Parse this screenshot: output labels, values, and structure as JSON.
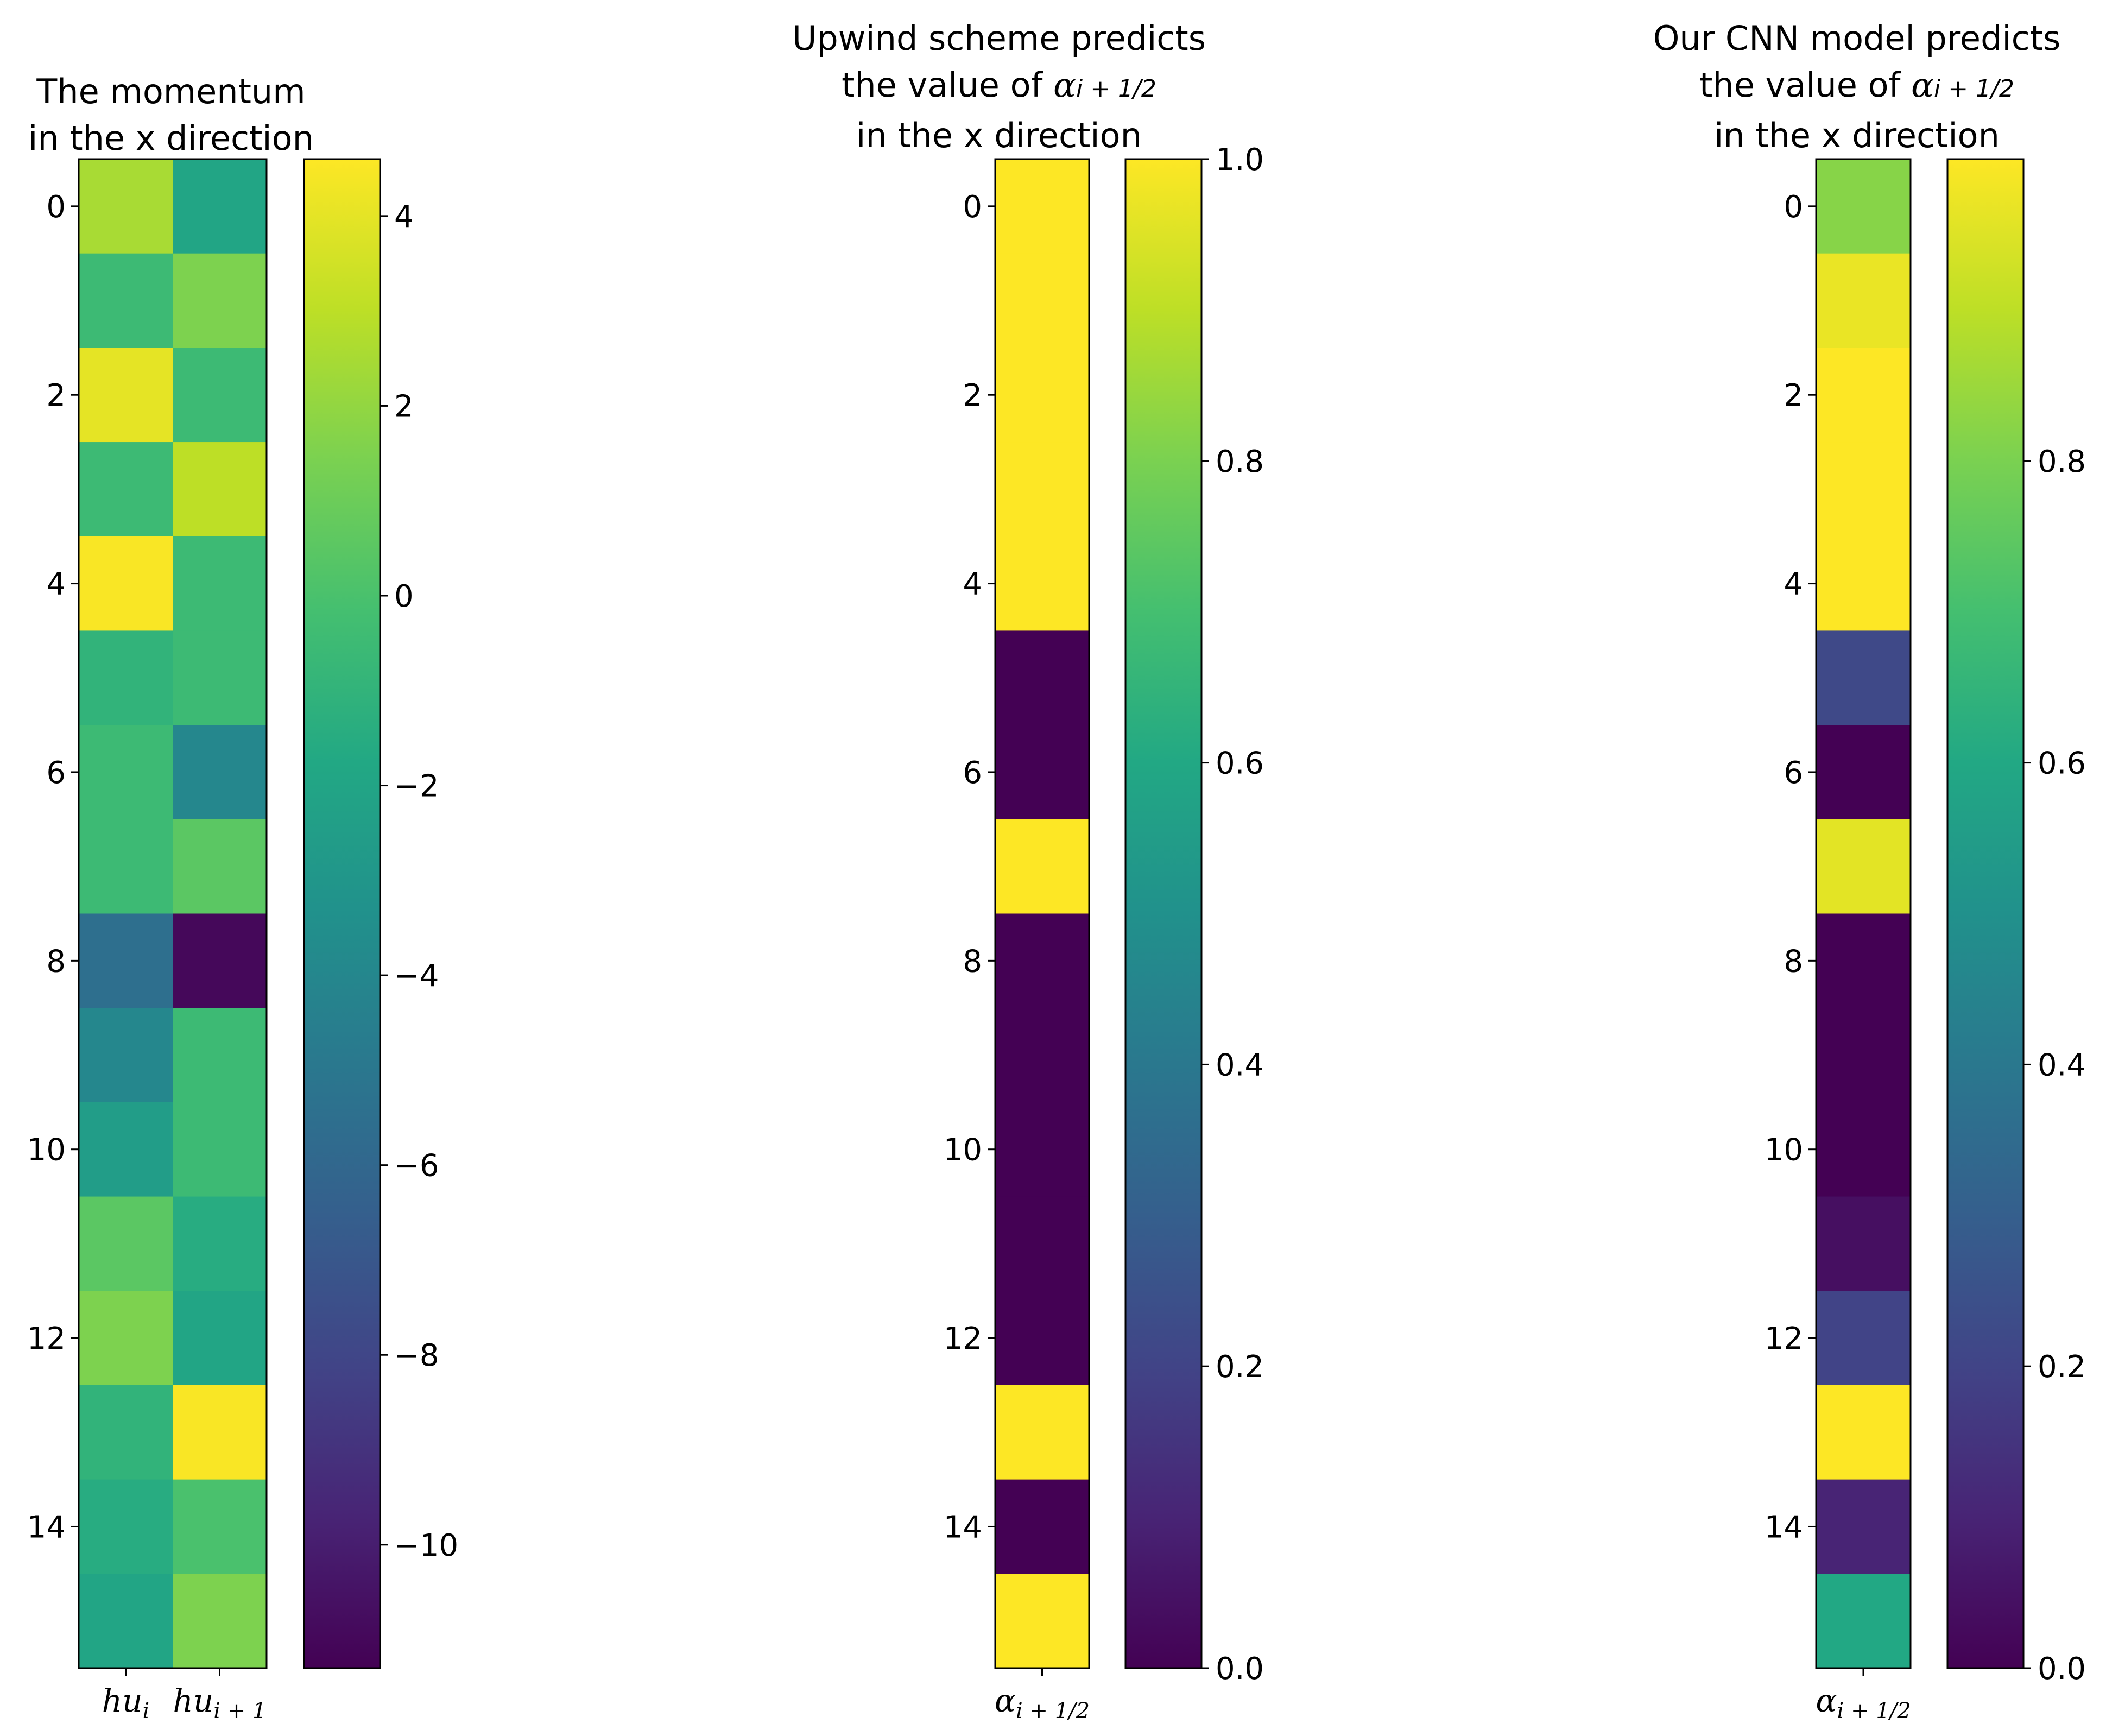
{
  "chart_data": [
    {
      "type": "heatmap",
      "title_lines": [
        "The momentum",
        "in the x direction"
      ],
      "columns": [
        "hu_i",
        "hu_{i+1}"
      ],
      "column_labels": [
        {
          "base": "hu",
          "sub": "i"
        },
        {
          "base": "hu",
          "sub": "i + 1"
        }
      ],
      "yticks": [
        "0",
        "2",
        "4",
        "6",
        "8",
        "10",
        "12",
        "14"
      ],
      "values": [
        [
          2.5,
          -2.0
        ],
        [
          -0.5,
          1.5
        ],
        [
          4.0,
          -0.5
        ],
        [
          -0.5,
          3.0
        ],
        [
          4.5,
          -0.5
        ],
        [
          -1.0,
          -0.5
        ],
        [
          -0.5,
          -4.0
        ],
        [
          -0.5,
          0.5
        ],
        [
          -5.5,
          -11.0
        ],
        [
          -4.0,
          -0.5
        ],
        [
          -2.5,
          -0.5
        ],
        [
          0.5,
          -1.5
        ],
        [
          1.5,
          -2.0
        ],
        [
          -1.0,
          4.5
        ],
        [
          -1.5,
          0.0
        ],
        [
          -2.0,
          1.5
        ]
      ],
      "colorbar": {
        "range": [
          -11.3,
          4.6
        ],
        "ticks": [
          4,
          2,
          0,
          -2,
          -4,
          -6,
          -8,
          -10
        ],
        "tick_labels": [
          "4",
          "2",
          "0",
          "−2",
          "−4",
          "−6",
          "−8",
          "−10"
        ]
      },
      "colormap": "viridis"
    },
    {
      "type": "heatmap",
      "title_lines": [
        "Upwind scheme predicts",
        "the value of α_{i+1/2}",
        "in the x direction"
      ],
      "title_prefix": "the value of ",
      "title_symbol": {
        "base": "α",
        "sub": "i + 1/2"
      },
      "columns": [
        "α_{i+1/2}"
      ],
      "column_labels": [
        {
          "base": "α",
          "sub": "i + 1/2"
        }
      ],
      "yticks": [
        "0",
        "2",
        "4",
        "6",
        "8",
        "10",
        "12",
        "14"
      ],
      "values": [
        1,
        1,
        1,
        1,
        1,
        0,
        0,
        1,
        0,
        0,
        0,
        0,
        0,
        1,
        0,
        1
      ],
      "colorbar": {
        "range": [
          0,
          1
        ],
        "ticks": [
          1.0,
          0.8,
          0.6,
          0.4,
          0.2,
          0.0
        ],
        "tick_labels": [
          "1.0",
          "0.8",
          "0.6",
          "0.4",
          "0.2",
          "0.0"
        ]
      },
      "colormap": "viridis"
    },
    {
      "type": "heatmap",
      "title_lines": [
        "Our CNN model predicts",
        "the value of α_{i+1/2}",
        "in the x direction"
      ],
      "title_prefix": "the value of ",
      "title_symbol": {
        "base": "α",
        "sub": "i + 1/2"
      },
      "columns": [
        "α_{i+1/2}"
      ],
      "column_labels": [
        {
          "base": "α",
          "sub": "i + 1/2"
        }
      ],
      "yticks": [
        "0",
        "2",
        "4",
        "6",
        "8",
        "10",
        "12",
        "14"
      ],
      "values": [
        0.82,
        0.97,
        1.0,
        1.0,
        1.0,
        0.22,
        0.0,
        0.96,
        0.0,
        0.0,
        0.0,
        0.04,
        0.2,
        1.0,
        0.1,
        0.6
      ],
      "colorbar": {
        "range": [
          0,
          1
        ],
        "ticks": [
          0.8,
          0.6,
          0.4,
          0.2,
          0.0
        ],
        "tick_labels": [
          "0.8",
          "0.6",
          "0.4",
          "0.2",
          "0.0"
        ]
      },
      "colormap": "viridis"
    }
  ]
}
